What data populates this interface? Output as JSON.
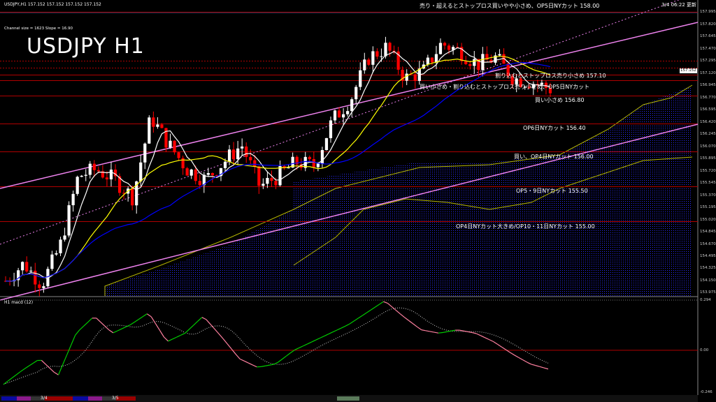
{
  "header": {
    "symbol_line": "USDJPY,H1  157.152 157.152 157.152 157.152",
    "channel_info": "Channel size = 1623 Slope = 16.90",
    "big_title": "USDJPY H1",
    "updated": "3/4 06:22 更新",
    "macd_label": "H1  macd (12)"
  },
  "colors": {
    "background": "#000000",
    "bull_candle": "#ffffff",
    "bear_candle": "#ff0000",
    "channel": "#ee82ee",
    "ma_fast": "#ffffff",
    "ma_mid": "#ffff00",
    "ma_slow": "#0000ff",
    "level_line": "#b00000",
    "cloud": "#0000aa",
    "macd_line": "#00cc00",
    "macd_bear": "#ff80a0"
  },
  "annotations": [
    {
      "text": "売り・超えるとストップロス買いやや小さめ、OP5日NYカット 158.00",
      "price": 158.0
    },
    {
      "text": "割り込むとストップロス売り小さめ 157.10",
      "price": 157.1
    },
    {
      "text": "買い小さめ・割り込むとストップロス売り小さめ、OP5日NYカット",
      "price": 157.02
    },
    {
      "text": "買い小さめ 156.80",
      "price": 156.8
    },
    {
      "text": "OP6日NYカット 156.40",
      "price": 156.4
    },
    {
      "text": "買い、OP4日NYカット 156.00",
      "price": 156.0
    },
    {
      "text": "OP5・9日NYカット 155.50",
      "price": 155.5
    },
    {
      "text": "OP4日NYカット大きめ/OP10・11日NYカット 155.00",
      "price": 155.0
    }
  ],
  "time_labels": [
    "3/4",
    "3/5"
  ],
  "chart_data": [
    {
      "type": "candlestick",
      "title": "USDJPY H1",
      "y_ticks": [
        "157.995",
        "157.820",
        "157.645",
        "157.470",
        "157.295",
        "157.120",
        "156.945",
        "156.770",
        "156.595",
        "156.420",
        "156.245",
        "156.070",
        "155.895",
        "155.720",
        "155.545",
        "155.370",
        "155.195",
        "155.020",
        "154.845",
        "154.670",
        "154.495",
        "154.325",
        "154.150",
        "153.975"
      ],
      "current_price": "157.152",
      "ylim": [
        153.975,
        158.17
      ],
      "close_path": [
        154.15,
        154.4,
        154.1,
        154.65,
        155.65,
        155.75,
        155.6,
        155.35,
        156.5,
        156.1,
        155.75,
        155.6,
        155.85,
        156.1,
        155.5,
        155.65,
        155.85,
        155.8,
        156.45,
        156.75,
        157.35,
        157.5,
        157.05,
        157.15,
        157.55,
        157.45,
        157.25,
        157.35,
        157.05,
        157.0,
        156.9
      ]
    },
    {
      "type": "line",
      "title": "macd (12)",
      "y_ticks": [
        "0.294",
        "0.00",
        "-0.246"
      ],
      "ylim": [
        -0.246,
        0.294
      ],
      "macd_path": [
        -0.2,
        -0.12,
        -0.05,
        -0.15,
        0.1,
        0.2,
        0.1,
        0.15,
        0.22,
        0.05,
        0.1,
        0.2,
        0.08,
        -0.05,
        -0.1,
        -0.08,
        0.0,
        0.05,
        0.1,
        0.15,
        0.22,
        0.29,
        0.2,
        0.12,
        0.1,
        0.12,
        0.1,
        0.05,
        -0.02,
        -0.08,
        -0.11
      ]
    }
  ]
}
